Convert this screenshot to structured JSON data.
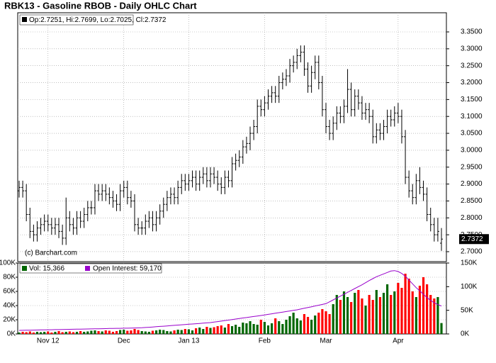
{
  "chart_data": {
    "type": "ohlc",
    "title": "RBK13 - Gasoline RBOB - Daily OHLC Chart",
    "legend_text": "Op:2.7251, Hi:2.7699, Lo:2.7025, Cl:2.7372",
    "watermark": "(c) Barchart.com",
    "last_price": {
      "value": 2.7372,
      "label": "2.7372"
    },
    "color": "#000000",
    "grid": true,
    "categories": [
      null,
      null,
      null,
      null,
      null,
      null,
      null,
      null,
      "Nov 12",
      null,
      null,
      null,
      null,
      null,
      null,
      null,
      null,
      null,
      null,
      null,
      null,
      null,
      null,
      null,
      null,
      null,
      null,
      null,
      null,
      "Dec",
      null,
      null,
      null,
      null,
      null,
      null,
      null,
      null,
      null,
      null,
      null,
      null,
      null,
      null,
      null,
      null,
      null,
      "Jan 13",
      null,
      null,
      null,
      null,
      null,
      null,
      null,
      null,
      null,
      null,
      null,
      null,
      null,
      null,
      null,
      null,
      null,
      null,
      null,
      null,
      "Feb",
      null,
      null,
      null,
      null,
      null,
      null,
      null,
      null,
      null,
      null,
      null,
      null,
      null,
      null,
      null,
      null,
      "Mar",
      null,
      null,
      null,
      null,
      null,
      null,
      null,
      null,
      null,
      null,
      null,
      null,
      null,
      null,
      null,
      null,
      null,
      null,
      null,
      "Apr",
      null,
      null,
      null,
      null,
      null,
      null,
      null,
      null,
      null,
      null,
      null,
      null
    ],
    "open": [
      2.88,
      2.89,
      2.88,
      2.81,
      2.76,
      2.75,
      2.77,
      2.78,
      2.79,
      2.78,
      2.77,
      2.78,
      2.76,
      2.74,
      2.8,
      2.78,
      2.77,
      2.8,
      2.79,
      2.81,
      2.83,
      2.83,
      2.88,
      2.87,
      2.88,
      2.87,
      2.86,
      2.85,
      2.84,
      2.88,
      2.89,
      2.86,
      2.85,
      2.78,
      2.77,
      2.77,
      2.79,
      2.8,
      2.78,
      2.8,
      2.82,
      2.84,
      2.86,
      2.87,
      2.86,
      2.89,
      2.91,
      2.9,
      2.91,
      2.92,
      2.9,
      2.92,
      2.93,
      2.91,
      2.93,
      2.92,
      2.9,
      2.89,
      2.92,
      2.91,
      2.96,
      2.97,
      2.98,
      3.01,
      3.02,
      3.05,
      3.07,
      3.13,
      3.12,
      3.14,
      3.16,
      3.17,
      3.16,
      3.2,
      3.21,
      3.22,
      3.25,
      3.26,
      3.28,
      3.29,
      3.24,
      3.19,
      3.23,
      3.26,
      3.2,
      3.12,
      3.07,
      3.05,
      3.08,
      3.11,
      3.1,
      3.13,
      3.18,
      3.12,
      3.16,
      3.14,
      3.11,
      3.12,
      3.1,
      3.04,
      3.06,
      3.05,
      3.07,
      3.1,
      3.09,
      3.11,
      3.1,
      3.04,
      2.92,
      2.88,
      2.86,
      2.91,
      2.89,
      2.87,
      2.81,
      2.78,
      2.75,
      2.7251
    ],
    "high": [
      2.91,
      2.91,
      2.9,
      2.83,
      2.78,
      2.79,
      2.8,
      2.81,
      2.81,
      2.8,
      2.8,
      2.8,
      2.78,
      2.86,
      2.82,
      2.8,
      2.82,
      2.82,
      2.83,
      2.85,
      2.85,
      2.9,
      2.9,
      2.9,
      2.9,
      2.89,
      2.88,
      2.87,
      2.9,
      2.91,
      2.91,
      2.88,
      2.87,
      2.8,
      2.79,
      2.81,
      2.82,
      2.82,
      2.82,
      2.84,
      2.86,
      2.88,
      2.89,
      2.89,
      2.91,
      2.93,
      2.93,
      2.93,
      2.94,
      2.94,
      2.94,
      2.95,
      2.95,
      2.95,
      2.95,
      2.94,
      2.92,
      2.94,
      2.94,
      2.98,
      2.99,
      3.0,
      3.03,
      3.04,
      3.07,
      3.09,
      3.15,
      3.15,
      3.16,
      3.18,
      3.19,
      3.19,
      3.22,
      3.23,
      3.24,
      3.27,
      3.28,
      3.3,
      3.31,
      3.31,
      3.26,
      3.25,
      3.28,
      3.28,
      3.22,
      3.14,
      3.09,
      3.1,
      3.13,
      3.13,
      3.15,
      3.24,
      3.2,
      3.18,
      3.18,
      3.16,
      3.14,
      3.14,
      3.12,
      3.08,
      3.08,
      3.09,
      3.12,
      3.12,
      3.13,
      3.14,
      3.12,
      3.06,
      2.94,
      2.9,
      2.93,
      2.95,
      2.91,
      2.89,
      2.83,
      2.8,
      2.8,
      2.7699
    ],
    "low": [
      2.86,
      2.86,
      2.79,
      2.74,
      2.73,
      2.73,
      2.75,
      2.76,
      2.76,
      2.75,
      2.75,
      2.74,
      2.72,
      2.72,
      2.76,
      2.75,
      2.75,
      2.77,
      2.77,
      2.79,
      2.81,
      2.81,
      2.85,
      2.85,
      2.85,
      2.84,
      2.83,
      2.82,
      2.82,
      2.86,
      2.84,
      2.83,
      2.76,
      2.75,
      2.75,
      2.75,
      2.77,
      2.76,
      2.76,
      2.78,
      2.8,
      2.82,
      2.84,
      2.84,
      2.84,
      2.87,
      2.88,
      2.88,
      2.89,
      2.88,
      2.88,
      2.9,
      2.89,
      2.89,
      2.9,
      2.88,
      2.87,
      2.87,
      2.89,
      2.89,
      2.94,
      2.95,
      2.96,
      2.99,
      3.0,
      3.03,
      3.05,
      3.1,
      3.1,
      3.12,
      3.14,
      3.14,
      3.14,
      3.18,
      3.19,
      3.2,
      3.23,
      3.24,
      3.26,
      3.22,
      3.17,
      3.17,
      3.21,
      3.18,
      3.1,
      3.05,
      3.03,
      3.03,
      3.06,
      3.08,
      3.08,
      3.11,
      3.1,
      3.1,
      3.12,
      3.09,
      3.09,
      3.08,
      3.02,
      3.02,
      3.03,
      3.03,
      3.05,
      3.07,
      3.07,
      3.08,
      3.02,
      2.9,
      2.86,
      2.84,
      2.84,
      2.87,
      2.85,
      2.79,
      2.76,
      2.73,
      2.73,
      2.7025
    ],
    "close": [
      2.89,
      2.88,
      2.81,
      2.76,
      2.75,
      2.77,
      2.78,
      2.79,
      2.78,
      2.77,
      2.78,
      2.76,
      2.74,
      2.8,
      2.78,
      2.77,
      2.8,
      2.79,
      2.81,
      2.83,
      2.83,
      2.88,
      2.87,
      2.88,
      2.87,
      2.86,
      2.85,
      2.84,
      2.88,
      2.89,
      2.86,
      2.85,
      2.78,
      2.77,
      2.77,
      2.79,
      2.8,
      2.78,
      2.8,
      2.82,
      2.84,
      2.86,
      2.87,
      2.86,
      2.89,
      2.91,
      2.9,
      2.91,
      2.92,
      2.9,
      2.92,
      2.93,
      2.91,
      2.93,
      2.92,
      2.9,
      2.89,
      2.92,
      2.91,
      2.96,
      2.97,
      2.98,
      3.01,
      3.02,
      3.05,
      3.07,
      3.13,
      3.12,
      3.14,
      3.16,
      3.17,
      3.16,
      3.2,
      3.21,
      3.22,
      3.25,
      3.26,
      3.28,
      3.29,
      3.24,
      3.19,
      3.23,
      3.26,
      3.2,
      3.12,
      3.07,
      3.05,
      3.08,
      3.11,
      3.1,
      3.13,
      3.18,
      3.12,
      3.16,
      3.14,
      3.11,
      3.12,
      3.1,
      3.04,
      3.06,
      3.05,
      3.07,
      3.1,
      3.09,
      3.11,
      3.1,
      3.04,
      2.92,
      2.88,
      2.86,
      2.91,
      2.89,
      2.87,
      2.81,
      2.78,
      2.75,
      2.76,
      2.7372
    ],
    "ylim": [
      2.6706,
      3.4066
    ],
    "yticks": [
      {
        "value": 2.7,
        "label": "2.7000"
      },
      {
        "value": 2.75,
        "label": "2.7500"
      },
      {
        "value": 2.8,
        "label": "2.8000"
      },
      {
        "value": 2.85,
        "label": "2.8500"
      },
      {
        "value": 2.9,
        "label": "2.9000"
      },
      {
        "value": 2.95,
        "label": "2.9500"
      },
      {
        "value": 3.0,
        "label": "3.0000"
      },
      {
        "value": 3.05,
        "label": "3.0500"
      },
      {
        "value": 3.1,
        "label": "3.1000"
      },
      {
        "value": 3.15,
        "label": "3.1500"
      },
      {
        "value": 3.2,
        "label": "3.2000"
      },
      {
        "value": 3.25,
        "label": "3.2500"
      },
      {
        "value": 3.3,
        "label": "3.3000"
      },
      {
        "value": 3.35,
        "label": "3.3500"
      }
    ],
    "volume": {
      "name": "Vol: 15,366",
      "up_color": "#006600",
      "down_color": "#ff0000",
      "values": [
        2000,
        3000,
        2500,
        3500,
        2000,
        3000,
        2500,
        3000,
        3500,
        2000,
        3000,
        4000,
        2500,
        3000,
        3500,
        2500,
        3000,
        4000,
        3000,
        3500,
        4500,
        5000,
        4000,
        3500,
        5000,
        4500,
        3000,
        4000,
        5500,
        6000,
        4500,
        5000,
        7000,
        5500,
        4000,
        3500,
        3000,
        4500,
        5000,
        6000,
        5500,
        4000,
        3500,
        5000,
        6000,
        5500,
        7000,
        6500,
        5000,
        8000,
        9000,
        7000,
        10000,
        8500,
        9500,
        11000,
        12000,
        9000,
        14000,
        11000,
        13000,
        10000,
        16000,
        15000,
        18000,
        14000,
        13000,
        20000,
        17000,
        12000,
        15000,
        22000,
        18000,
        14000,
        20000,
        25000,
        30000,
        22000,
        19000,
        28000,
        24000,
        20000,
        26000,
        30000,
        35000,
        32000,
        28000,
        42000,
        55000,
        48000,
        60000,
        52000,
        45000,
        58000,
        62000,
        50000,
        40000,
        55000,
        48000,
        62000,
        52000,
        58000,
        70000,
        55000,
        60000,
        72000,
        65000,
        85000,
        78000,
        60000,
        52000,
        68000,
        80000,
        70000,
        55000,
        50000,
        52000,
        15366
      ],
      "ylim": [
        0,
        100000
      ],
      "yticks": [
        {
          "value": 0,
          "label": "0K"
        },
        {
          "value": 20000,
          "label": "20K"
        },
        {
          "value": 40000,
          "label": "40K"
        },
        {
          "value": 60000,
          "label": "60K"
        },
        {
          "value": 80000,
          "label": "80K"
        },
        {
          "value": 100000,
          "label": "100K"
        }
      ]
    },
    "open_interest": {
      "name": "Open Interest: 59,170",
      "color": "#9900cc",
      "axis": "y2",
      "values": [
        7500,
        7700,
        7800,
        8000,
        8100,
        8300,
        8500,
        8600,
        8800,
        8900,
        9100,
        9200,
        9400,
        9600,
        9700,
        9900,
        10000,
        10200,
        10300,
        10500,
        10700,
        10800,
        11000,
        11100,
        11300,
        11500,
        11600,
        11800,
        11900,
        12100,
        12200,
        12400,
        12600,
        12800,
        13000,
        13600,
        14100,
        14700,
        15300,
        15900,
        16400,
        17000,
        17600,
        18200,
        18700,
        19300,
        19900,
        20500,
        21000,
        21600,
        22200,
        22800,
        23400,
        24000,
        25000,
        26100,
        27200,
        28300,
        29300,
        30400,
        31500,
        32600,
        33700,
        34700,
        35800,
        36900,
        38000,
        39000,
        40200,
        41400,
        42600,
        43800,
        45000,
        46200,
        47400,
        48600,
        49800,
        51000,
        52600,
        54300,
        55900,
        57500,
        59200,
        60800,
        62400,
        64000,
        68000,
        72000,
        76000,
        80000,
        84000,
        88000,
        92000,
        96000,
        100000,
        104000,
        108500,
        113000,
        117000,
        121000,
        124000,
        127000,
        130000,
        133000,
        134000,
        132000,
        128000,
        122000,
        114000,
        106000,
        98000,
        91000,
        84000,
        77000,
        71000,
        66000,
        62000,
        59170
      ],
      "y2lim": [
        0,
        150000
      ],
      "y2ticks": [
        {
          "value": 0,
          "label": "0K"
        },
        {
          "value": 50000,
          "label": "50K"
        },
        {
          "value": 100000,
          "label": "100K"
        },
        {
          "value": 150000,
          "label": "150K"
        }
      ]
    }
  }
}
